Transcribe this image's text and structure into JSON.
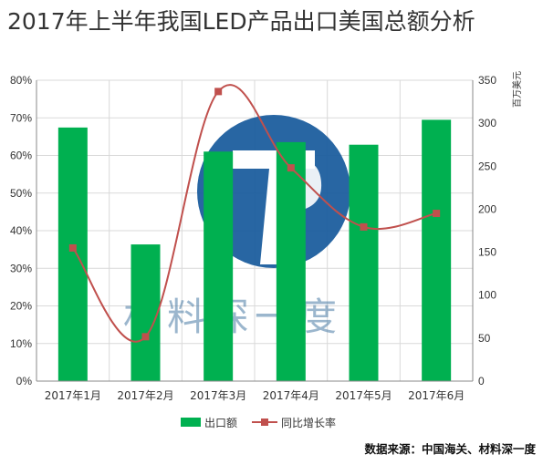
{
  "title": "2017年上半年我国LED产品出口美国总额分析",
  "source": "数据来源：中国海关、材料深一度",
  "watermark": {
    "text": "材料深一度",
    "logo_color": "#1c5e9e"
  },
  "chart_data": {
    "type": "bar",
    "categories": [
      "2017年1月",
      "2017年2月",
      "2017年3月",
      "2017年4月",
      "2017年5月",
      "2017年6月"
    ],
    "series": [
      {
        "name": "出口额",
        "type": "bar",
        "axis": "right",
        "color": "#00b050",
        "values": [
          295,
          159,
          267,
          278,
          275,
          304
        ]
      },
      {
        "name": "同比增长率",
        "type": "line",
        "axis": "left",
        "color": "#c0504d",
        "values": [
          0.354,
          0.118,
          0.77,
          0.567,
          0.41,
          0.446
        ]
      }
    ],
    "y_left": {
      "min": 0,
      "max": 0.8,
      "ticks": [
        "0%",
        "10%",
        "20%",
        "30%",
        "40%",
        "50%",
        "60%",
        "70%",
        "80%"
      ]
    },
    "y_right": {
      "min": 0,
      "max": 350,
      "label": "百万美元",
      "ticks": [
        "0",
        "50",
        "100",
        "150",
        "200",
        "250",
        "300",
        "350"
      ]
    },
    "grid": true,
    "legend_position": "bottom"
  }
}
